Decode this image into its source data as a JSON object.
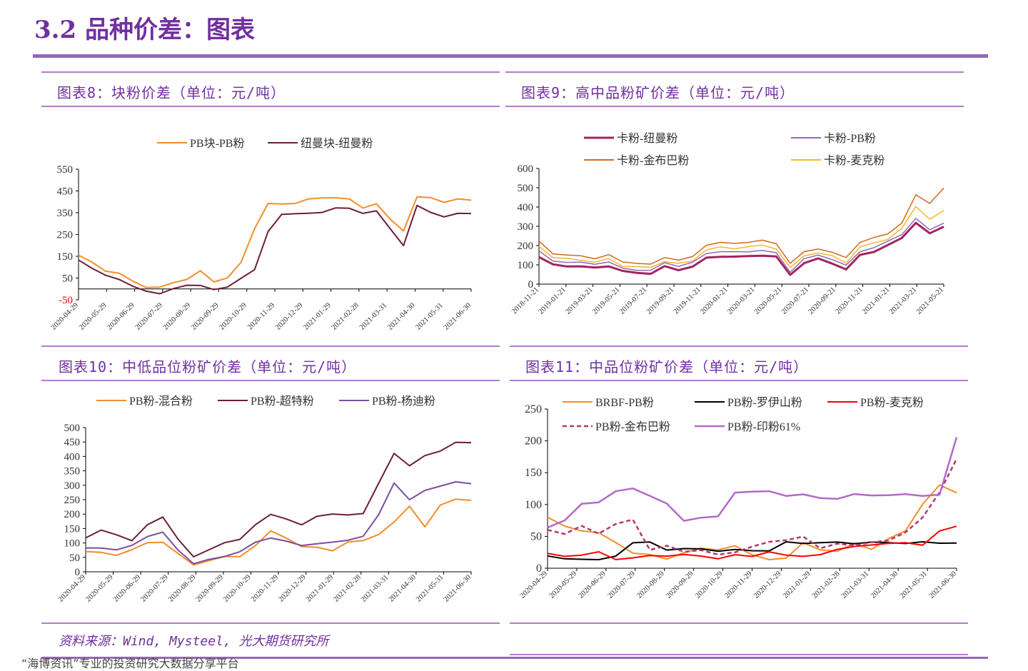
{
  "page": {
    "title": "3.2 品种价差：图表",
    "source": "资料来源：Wind, Mysteel, 光大期货研究所",
    "footer": "“海博资讯”专业的投资研究大数据分享平台"
  },
  "colors": {
    "purple_title": "#7030A0",
    "orange": "#F28E2B",
    "maroon": "#6B1F3A",
    "violet": "#7B4FA0",
    "lavender": "#B07CC6",
    "brown_orange": "#D2691E",
    "gold": "#F5B72E",
    "black": "#000000",
    "red": "#FF0000",
    "pink_violet": "#B469C8"
  },
  "chart_data": [
    {
      "id": "chart8",
      "type": "line",
      "panel_title": "图表8：块粉价差（单位：元/吨）",
      "ylim": [
        -50,
        550
      ],
      "yticks": [
        "550",
        "450",
        "350",
        "250",
        "150",
        "50",
        "-50"
      ],
      "x_ticks": [
        "2020-04-29",
        "2020-05-29",
        "2020-06-29",
        "2020-07-29",
        "2020-08-29",
        "2020-09-29",
        "2020-10-29",
        "2020-11-29",
        "2020-12-29",
        "2021-01-29",
        "2021-02-28",
        "2021-03-31",
        "2021-04-30",
        "2021-05-31",
        "2021-06-30"
      ],
      "legend": [
        "PB块-PB粉",
        "纽曼块-纽曼粉"
      ],
      "series": [
        {
          "name": "PB块-PB粉",
          "color": "#F28E2B",
          "width": 2,
          "values": [
            155,
            120,
            85,
            70,
            35,
            10,
            5,
            30,
            45,
            80,
            35,
            50,
            120,
            280,
            390,
            390,
            395,
            410,
            420,
            420,
            410,
            375,
            390,
            320,
            270,
            420,
            420,
            400,
            410,
            410
          ]
        },
        {
          "name": "纽曼块-纽曼粉",
          "color": "#6B1F3A",
          "width": 2,
          "values": [
            130,
            95,
            65,
            40,
            15,
            -10,
            -25,
            5,
            15,
            15,
            0,
            5,
            50,
            90,
            260,
            345,
            345,
            345,
            355,
            370,
            370,
            350,
            355,
            280,
            200,
            380,
            355,
            330,
            345,
            350
          ]
        }
      ]
    },
    {
      "id": "chart9",
      "type": "line",
      "panel_title": "图表9：高中品粉矿价差（单位：元/吨）",
      "ylim": [
        0,
        600
      ],
      "yticks": [
        "600",
        "500",
        "400",
        "300",
        "200",
        "100",
        "0"
      ],
      "x_ticks": [
        "2018-11-21",
        "2019-01-21",
        "2019-03-21",
        "2019-05-21",
        "2019-07-21",
        "2019-09-21",
        "2019-11-21",
        "2020-01-21",
        "2020-03-21",
        "2020-05-21",
        "2020-07-21",
        "2020-09-21",
        "2020-11-21",
        "2021-01-21",
        "2021-03-21",
        "2021-05-21"
      ],
      "legend": [
        "卡粉-纽曼粉",
        "卡粉-PB粉",
        "卡粉-金布巴粉",
        "卡粉-麦克粉"
      ],
      "series": [
        {
          "name": "卡粉-纽曼粉",
          "color": "#A0245F",
          "width": 3,
          "values": [
            140,
            100,
            95,
            90,
            85,
            95,
            65,
            60,
            55,
            90,
            75,
            90,
            135,
            145,
            140,
            145,
            150,
            140,
            50,
            110,
            130,
            110,
            75,
            150,
            170,
            200,
            240,
            320,
            260,
            300
          ]
        },
        {
          "name": "卡粉-PB粉",
          "color": "#9467BD",
          "width": 1.5,
          "values": [
            170,
            120,
            115,
            110,
            105,
            115,
            80,
            75,
            70,
            110,
            95,
            110,
            160,
            170,
            165,
            170,
            175,
            160,
            65,
            130,
            150,
            130,
            95,
            170,
            190,
            220,
            260,
            340,
            280,
            320
          ]
        },
        {
          "name": "卡粉-金布巴粉",
          "color": "#D2691E",
          "width": 1.5,
          "values": [
            220,
            160,
            150,
            145,
            135,
            150,
            115,
            110,
            100,
            140,
            125,
            140,
            205,
            215,
            210,
            220,
            225,
            210,
            110,
            165,
            185,
            165,
            135,
            220,
            240,
            260,
            320,
            460,
            420,
            500
          ]
        },
        {
          "name": "卡粉-麦克粉",
          "color": "#F5B72E",
          "width": 1.5,
          "values": [
            195,
            140,
            130,
            125,
            115,
            130,
            95,
            90,
            85,
            120,
            105,
            120,
            180,
            190,
            185,
            195,
            200,
            185,
            85,
            145,
            165,
            145,
            110,
            195,
            210,
            235,
            290,
            400,
            340,
            380
          ]
        }
      ]
    },
    {
      "id": "chart10",
      "type": "line",
      "panel_title": "图表10：中低品位粉矿价差（单位：元/吨）",
      "ylim": [
        0,
        500
      ],
      "yticks": [
        "500",
        "450",
        "400",
        "350",
        "300",
        "250",
        "200",
        "150",
        "100",
        "50",
        "0"
      ],
      "x_ticks": [
        "2020-04-29",
        "2020-05-29",
        "2020-06-29",
        "2020-07-29",
        "2020-08-29",
        "2020-09-29",
        "2020-10-29",
        "2020-11-29",
        "2020-12-29",
        "2021-01-29",
        "2021-02-28",
        "2021-03-31",
        "2021-04-30",
        "2021-05-31",
        "2021-06-30"
      ],
      "legend": [
        "PB粉-混合粉",
        "PB粉-超特粉",
        "PB粉-杨迪粉"
      ],
      "series": [
        {
          "name": "PB粉-混合粉",
          "color": "#F28E2B",
          "width": 2,
          "values": [
            70,
            65,
            60,
            75,
            100,
            105,
            60,
            25,
            40,
            50,
            55,
            90,
            140,
            120,
            85,
            85,
            75,
            100,
            110,
            130,
            170,
            230,
            155,
            230,
            255,
            245
          ]
        },
        {
          "name": "PB粉-超特粉",
          "color": "#6B1F3A",
          "width": 2,
          "values": [
            115,
            145,
            130,
            105,
            165,
            190,
            110,
            55,
            75,
            100,
            115,
            160,
            200,
            185,
            160,
            195,
            200,
            195,
            205,
            305,
            410,
            370,
            400,
            420,
            450,
            445
          ]
        },
        {
          "name": "PB粉-杨迪粉",
          "color": "#7B4FA0",
          "width": 2,
          "values": [
            80,
            85,
            75,
            90,
            125,
            135,
            75,
            30,
            40,
            55,
            70,
            100,
            120,
            105,
            90,
            100,
            100,
            110,
            125,
            195,
            310,
            250,
            280,
            300,
            310,
            305
          ]
        }
      ]
    },
    {
      "id": "chart11",
      "type": "line",
      "panel_title": "图表11：中品位粉矿价差（单位：元/吨）",
      "ylim": [
        0,
        250
      ],
      "yticks": [
        "250",
        "200",
        "150",
        "100",
        "50",
        "0"
      ],
      "x_ticks": [
        "2020-04-29",
        "2020-05-29",
        "2020-06-29",
        "2020-07-29",
        "2020-08-29",
        "2020-09-29",
        "2020-10-29",
        "2020-11-29",
        "2020-12-29",
        "2021-01-29",
        "2021-02-28",
        "2021-03-31",
        "2021-04-30",
        "2021-05-31",
        "2021-06-30"
      ],
      "legend": [
        "BRBF-PB粉",
        "PB粉-罗伊山粉",
        "PB粉-麦克粉",
        "PB粉-金布巴粉",
        "PB粉-印粉61%"
      ],
      "series": [
        {
          "name": "BRBF-PB粉",
          "color": "#F28E2B",
          "width": 2,
          "dash": "",
          "values": [
            80,
            65,
            60,
            55,
            40,
            25,
            20,
            15,
            25,
            30,
            30,
            35,
            20,
            15,
            15,
            40,
            30,
            25,
            40,
            30,
            45,
            60,
            100,
            130,
            120
          ]
        },
        {
          "name": "PB粉-罗伊山粉",
          "color": "#000000",
          "width": 2,
          "dash": "",
          "values": [
            18,
            15,
            15,
            12,
            20,
            40,
            40,
            30,
            30,
            30,
            28,
            28,
            28,
            28,
            40,
            40,
            40,
            40,
            40,
            40,
            40,
            40,
            40,
            40,
            40
          ]
        },
        {
          "name": "PB粉-麦克粉",
          "color": "#FF0000",
          "width": 2,
          "dash": "",
          "values": [
            22,
            20,
            20,
            25,
            15,
            15,
            20,
            20,
            20,
            20,
            15,
            20,
            20,
            25,
            20,
            20,
            20,
            30,
            35,
            35,
            40,
            40,
            35,
            60,
            65
          ]
        },
        {
          "name": "PB粉-金布巴粉",
          "color": "#B03A6A",
          "width": 2.5,
          "dash": "6,4",
          "values": [
            60,
            55,
            65,
            55,
            70,
            75,
            30,
            35,
            25,
            30,
            20,
            25,
            35,
            40,
            45,
            50,
            30,
            40,
            35,
            40,
            45,
            55,
            80,
            120,
            170
          ]
        },
        {
          "name": "PB粉-印粉61%",
          "color": "#B469C8",
          "width": 2.5,
          "dash": "",
          "values": [
            65,
            75,
            100,
            105,
            120,
            125,
            115,
            100,
            75,
            80,
            80,
            120,
            120,
            120,
            115,
            115,
            110,
            110,
            115,
            115,
            115,
            115,
            115,
            115,
            205
          ]
        }
      ]
    }
  ]
}
